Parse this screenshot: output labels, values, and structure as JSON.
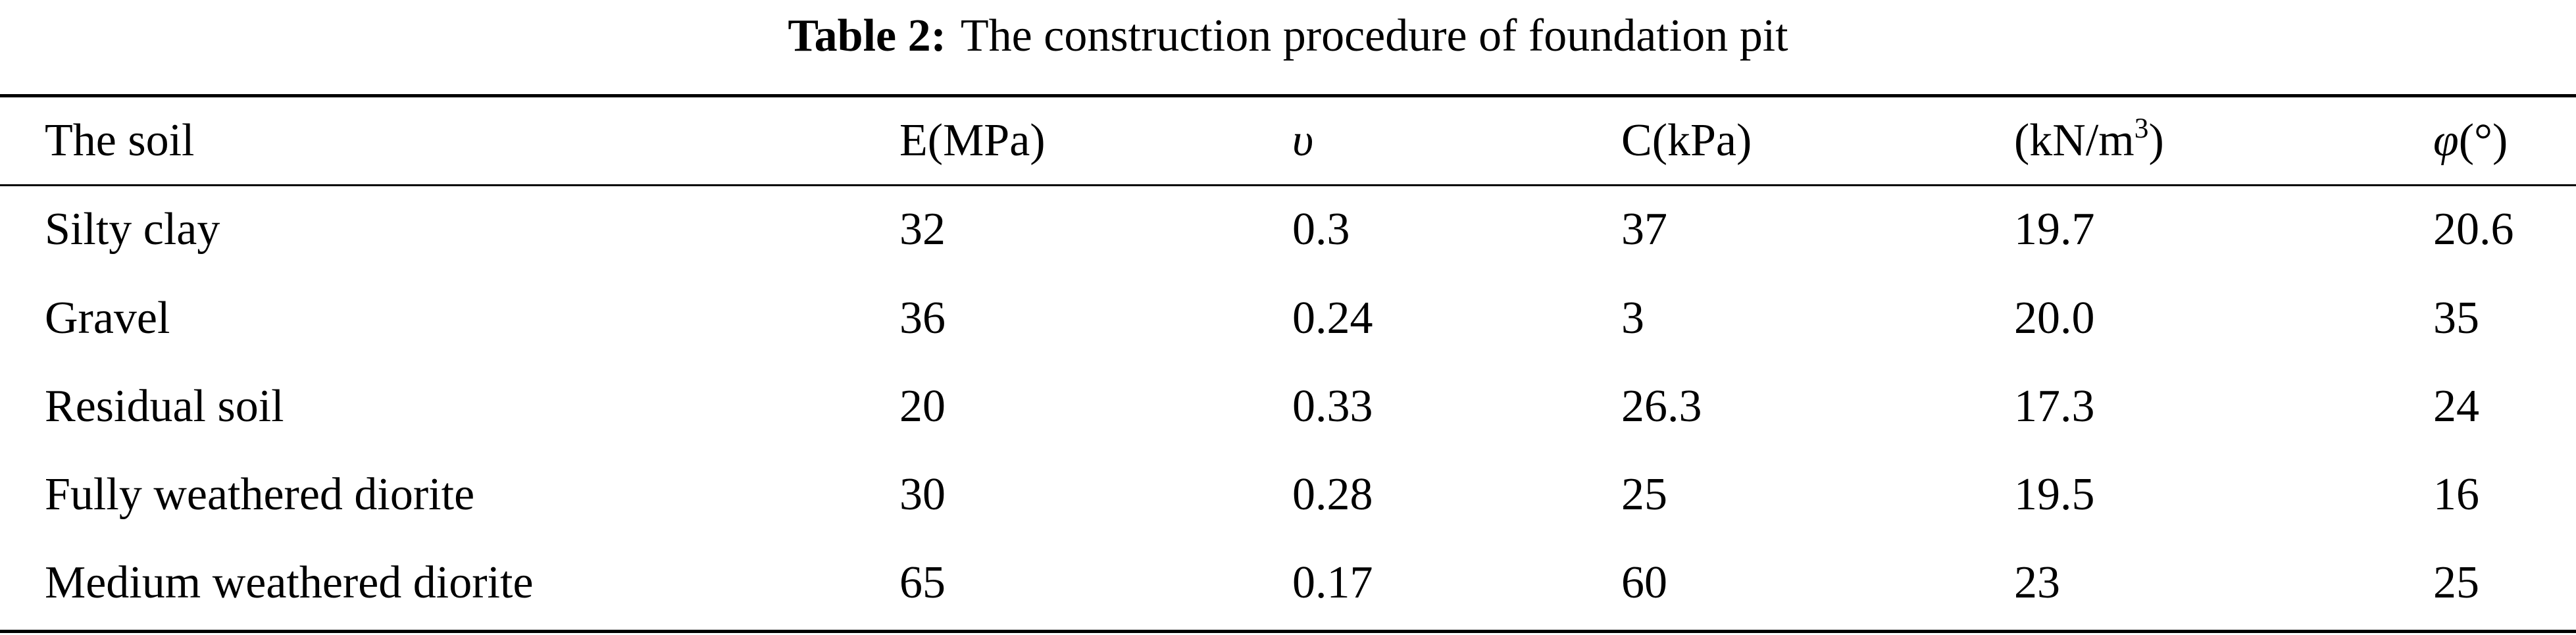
{
  "caption": {
    "label": "Table 2:",
    "text": "The construction procedure of foundation pit"
  },
  "table": {
    "headers": {
      "soil": "The soil",
      "e_modulus": "E(MPa)",
      "poisson": "υ",
      "cohesion": "C(kPa)",
      "unit_weight_base": "(kN/m",
      "unit_weight_exp": "3",
      "unit_weight_close": ")",
      "friction_symbol": "φ",
      "friction_unit": "(°)"
    },
    "rows": [
      {
        "soil": "Silty clay",
        "e": "32",
        "v": "0.3",
        "c": "37",
        "gamma": "19.7",
        "phi": "20.6"
      },
      {
        "soil": "Gravel",
        "e": "36",
        "v": "0.24",
        "c": "3",
        "gamma": "20.0",
        "phi": "35"
      },
      {
        "soil": "Residual soil",
        "e": "20",
        "v": "0.33",
        "c": "26.3",
        "gamma": "17.3",
        "phi": "24"
      },
      {
        "soil": "Fully weathered diorite",
        "e": "30",
        "v": "0.28",
        "c": "25",
        "gamma": "19.5",
        "phi": "16"
      },
      {
        "soil": "Medium weathered diorite",
        "e": "65",
        "v": "0.17",
        "c": "60",
        "gamma": "23",
        "phi": "25"
      }
    ]
  }
}
